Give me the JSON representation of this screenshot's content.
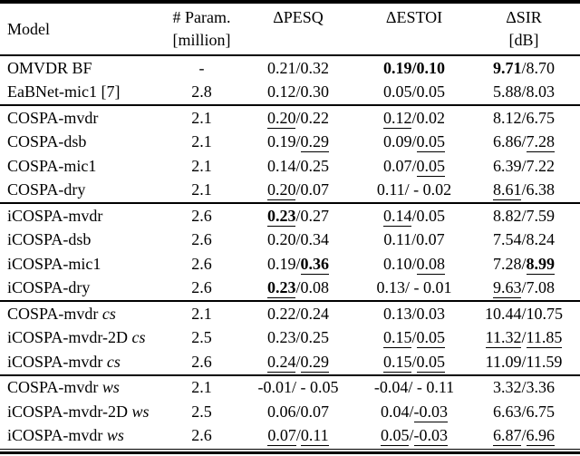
{
  "table": {
    "header": {
      "model": "Model",
      "param_line1": "# Param.",
      "param_line2": "[million]",
      "pesq": "ΔPESQ",
      "estoi": "ΔESTOI",
      "sir_line1": "ΔSIR",
      "sir_line2": "[dB]"
    },
    "groups": [
      [
        {
          "model": "OMVDR BF",
          "suffix": "",
          "param": "-",
          "pesq": [
            [
              "0.21",
              ""
            ],
            [
              "/",
              ""
            ],
            [
              "0.32",
              ""
            ]
          ],
          "estoi": [
            [
              "0.19",
              "b"
            ],
            [
              "/",
              "b"
            ],
            [
              "0.10",
              "b"
            ]
          ],
          "sir": [
            [
              "9.71",
              "b"
            ],
            [
              "/",
              ""
            ],
            [
              "8.70",
              ""
            ]
          ]
        },
        {
          "model": "EaBNet-mic1 [7]",
          "suffix": "",
          "param": "2.8",
          "pesq": [
            [
              "0.12",
              ""
            ],
            [
              "/",
              ""
            ],
            [
              "0.30",
              ""
            ]
          ],
          "estoi": [
            [
              "0.05",
              ""
            ],
            [
              "/",
              ""
            ],
            [
              "0.05",
              ""
            ]
          ],
          "sir": [
            [
              "5.88",
              ""
            ],
            [
              "/",
              ""
            ],
            [
              "8.03",
              ""
            ]
          ]
        }
      ],
      [
        {
          "model": "COSPA-mvdr",
          "suffix": "",
          "param": "2.1",
          "pesq": [
            [
              "0.20",
              "u"
            ],
            [
              "/",
              ""
            ],
            [
              "0.22",
              ""
            ]
          ],
          "estoi": [
            [
              "0.12",
              "u"
            ],
            [
              "/",
              ""
            ],
            [
              "0.02",
              ""
            ]
          ],
          "sir": [
            [
              "8.12",
              ""
            ],
            [
              "/",
              ""
            ],
            [
              "6.75",
              ""
            ]
          ]
        },
        {
          "model": "COSPA-dsb",
          "suffix": "",
          "param": "2.1",
          "pesq": [
            [
              "0.19",
              ""
            ],
            [
              "/",
              ""
            ],
            [
              "0.29",
              "u"
            ]
          ],
          "estoi": [
            [
              "0.09",
              ""
            ],
            [
              "/",
              ""
            ],
            [
              "0.05",
              "u"
            ]
          ],
          "sir": [
            [
              "6.86",
              ""
            ],
            [
              "/",
              ""
            ],
            [
              "7.28",
              "u"
            ]
          ]
        },
        {
          "model": "COSPA-mic1",
          "suffix": "",
          "param": "2.1",
          "pesq": [
            [
              "0.14",
              ""
            ],
            [
              "/",
              ""
            ],
            [
              "0.25",
              ""
            ]
          ],
          "estoi": [
            [
              "0.07",
              ""
            ],
            [
              "/",
              ""
            ],
            [
              "0.05",
              "u"
            ]
          ],
          "sir": [
            [
              "6.39",
              ""
            ],
            [
              "/",
              ""
            ],
            [
              "7.22",
              ""
            ]
          ]
        },
        {
          "model": "COSPA-dry",
          "suffix": "",
          "param": "2.1",
          "pesq": [
            [
              "0.20",
              "u"
            ],
            [
              "/",
              ""
            ],
            [
              "0.07",
              ""
            ]
          ],
          "estoi": [
            [
              "0.11",
              ""
            ],
            [
              "/",
              ""
            ],
            [
              " - 0.02",
              ""
            ]
          ],
          "sir": [
            [
              "8.61",
              "u"
            ],
            [
              "/",
              ""
            ],
            [
              "6.38",
              ""
            ]
          ]
        }
      ],
      [
        {
          "model": "iCOSPA-mvdr",
          "suffix": "",
          "param": "2.6",
          "pesq": [
            [
              "0.23",
              "bu"
            ],
            [
              "/",
              ""
            ],
            [
              "0.27",
              ""
            ]
          ],
          "estoi": [
            [
              "0.14",
              "u"
            ],
            [
              "/",
              ""
            ],
            [
              "0.05",
              ""
            ]
          ],
          "sir": [
            [
              "8.82",
              ""
            ],
            [
              "/",
              ""
            ],
            [
              "7.59",
              ""
            ]
          ]
        },
        {
          "model": "iCOSPA-dsb",
          "suffix": "",
          "param": "2.6",
          "pesq": [
            [
              "0.20",
              ""
            ],
            [
              "/",
              ""
            ],
            [
              "0.34",
              ""
            ]
          ],
          "estoi": [
            [
              "0.11",
              ""
            ],
            [
              "/",
              ""
            ],
            [
              "0.07",
              ""
            ]
          ],
          "sir": [
            [
              "7.54",
              ""
            ],
            [
              "/",
              ""
            ],
            [
              "8.24",
              ""
            ]
          ]
        },
        {
          "model": "iCOSPA-mic1",
          "suffix": "",
          "param": "2.6",
          "pesq": [
            [
              "0.19",
              ""
            ],
            [
              "/",
              ""
            ],
            [
              "0.36",
              "bu"
            ]
          ],
          "estoi": [
            [
              "0.10",
              ""
            ],
            [
              "/",
              ""
            ],
            [
              "0.08",
              "u"
            ]
          ],
          "sir": [
            [
              "7.28",
              ""
            ],
            [
              "/",
              ""
            ],
            [
              "8.99",
              "bu"
            ]
          ]
        },
        {
          "model": "iCOSPA-dry",
          "suffix": "",
          "param": "2.6",
          "pesq": [
            [
              "0.23",
              "bu"
            ],
            [
              "/",
              ""
            ],
            [
              "0.08",
              ""
            ]
          ],
          "estoi": [
            [
              "0.13",
              ""
            ],
            [
              "/",
              ""
            ],
            [
              " - 0.01",
              ""
            ]
          ],
          "sir": [
            [
              "9.63",
              "u"
            ],
            [
              "/",
              ""
            ],
            [
              "7.08",
              ""
            ]
          ]
        }
      ],
      [
        {
          "model": "COSPA-mvdr",
          "suffix": "cs",
          "param": "2.1",
          "pesq": [
            [
              "0.22",
              ""
            ],
            [
              "/",
              ""
            ],
            [
              "0.24",
              ""
            ]
          ],
          "estoi": [
            [
              "0.13",
              ""
            ],
            [
              "/",
              ""
            ],
            [
              "0.03",
              ""
            ]
          ],
          "sir": [
            [
              "10.44",
              ""
            ],
            [
              "/",
              ""
            ],
            [
              "10.75",
              ""
            ]
          ]
        },
        {
          "model": "iCOSPA-mvdr-2D",
          "suffix": "cs",
          "param": "2.5",
          "pesq": [
            [
              "0.23",
              ""
            ],
            [
              "/",
              ""
            ],
            [
              "0.25",
              ""
            ]
          ],
          "estoi": [
            [
              "0.15",
              "u"
            ],
            [
              "/",
              ""
            ],
            [
              "0.05",
              "u"
            ]
          ],
          "sir": [
            [
              "11.32",
              "u"
            ],
            [
              "/",
              ""
            ],
            [
              "11.85",
              "u"
            ]
          ]
        },
        {
          "model": "iCOSPA-mvdr",
          "suffix": "cs",
          "param": "2.6",
          "pesq": [
            [
              "0.24",
              "u"
            ],
            [
              "/",
              ""
            ],
            [
              "0.29",
              "u"
            ]
          ],
          "estoi": [
            [
              "0.15",
              "u"
            ],
            [
              "/",
              ""
            ],
            [
              "0.05",
              "u"
            ]
          ],
          "sir": [
            [
              "11.09",
              ""
            ],
            [
              "/",
              ""
            ],
            [
              "11.59",
              ""
            ]
          ]
        }
      ],
      [
        {
          "model": "COSPA-mvdr",
          "suffix": "ws",
          "param": "2.1",
          "pesq": [
            [
              "-0.01",
              ""
            ],
            [
              "/",
              ""
            ],
            [
              " - 0.05",
              ""
            ]
          ],
          "estoi": [
            [
              "-0.04",
              ""
            ],
            [
              "/",
              ""
            ],
            [
              " - 0.11",
              ""
            ]
          ],
          "sir": [
            [
              "3.32",
              ""
            ],
            [
              "/",
              ""
            ],
            [
              "3.36",
              ""
            ]
          ]
        },
        {
          "model": "iCOSPA-mvdr-2D",
          "suffix": "ws",
          "param": "2.5",
          "pesq": [
            [
              "0.06",
              ""
            ],
            [
              "/",
              ""
            ],
            [
              "0.07",
              ""
            ]
          ],
          "estoi": [
            [
              "0.04",
              ""
            ],
            [
              "/",
              ""
            ],
            [
              "-0.03",
              "u"
            ]
          ],
          "sir": [
            [
              "6.63",
              ""
            ],
            [
              "/",
              ""
            ],
            [
              "6.75",
              ""
            ]
          ]
        },
        {
          "model": "iCOSPA-mvdr",
          "suffix": "ws",
          "param": "2.6",
          "pesq": [
            [
              "0.07",
              "u"
            ],
            [
              "/",
              ""
            ],
            [
              "0.11",
              "u"
            ]
          ],
          "estoi": [
            [
              "0.05",
              "u"
            ],
            [
              "/",
              ""
            ],
            [
              "-0.03",
              "u"
            ]
          ],
          "sir": [
            [
              "6.87",
              "u"
            ],
            [
              "/",
              ""
            ],
            [
              "6.96",
              "u"
            ]
          ]
        }
      ]
    ]
  }
}
